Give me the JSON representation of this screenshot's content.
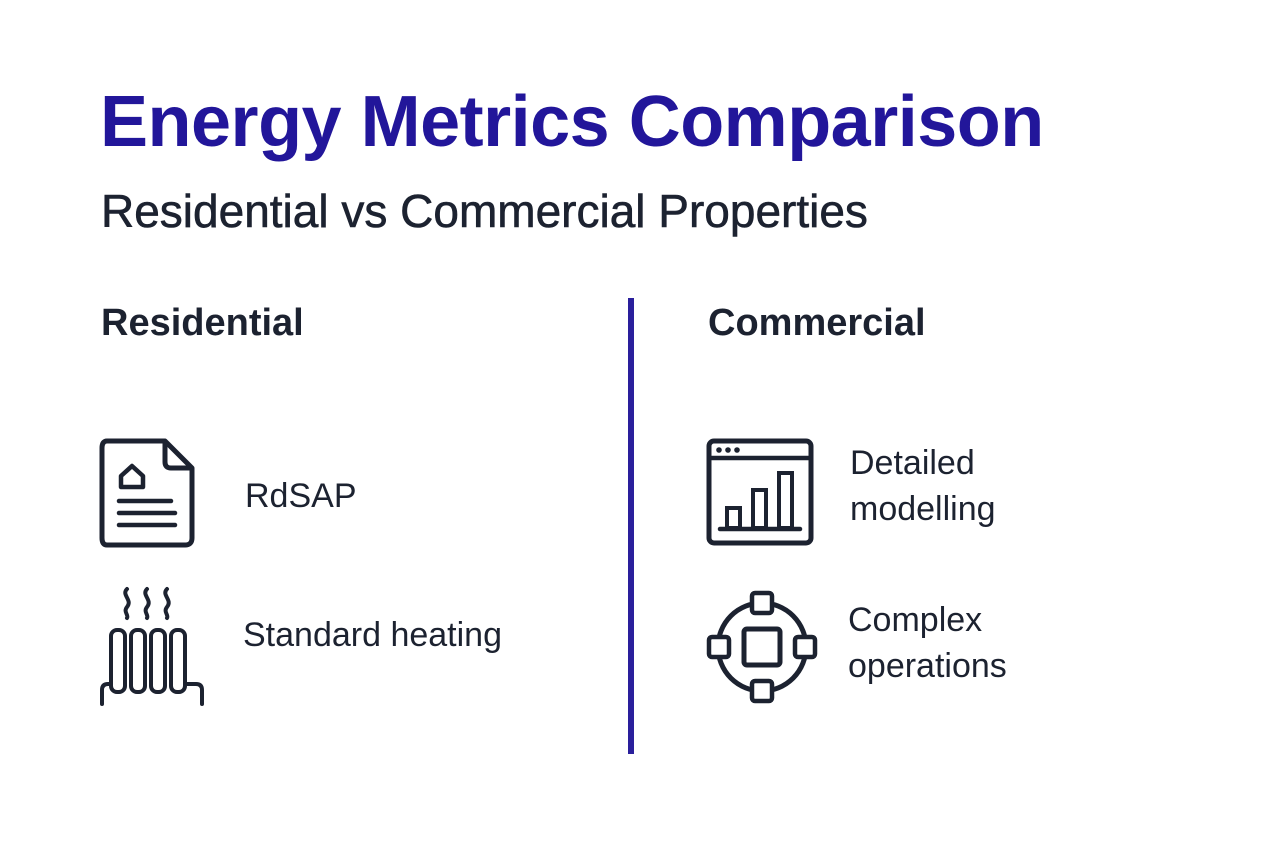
{
  "title": "Energy Metrics Comparison",
  "subtitle": "Residential vs Commercial Properties",
  "columns": [
    {
      "heading": "Residential",
      "items": [
        {
          "icon": "house-document-icon",
          "label": "RdSAP"
        },
        {
          "icon": "radiator-icon",
          "label": "Standard heating"
        }
      ]
    },
    {
      "heading": "Commercial",
      "items": [
        {
          "icon": "bar-chart-window-icon",
          "label": "Detailed\nmodelling"
        },
        {
          "icon": "network-nodes-icon",
          "label": "Complex\noperations"
        }
      ]
    }
  ],
  "colors": {
    "title": "#22169a",
    "divider": "#2a1f9c",
    "text": "#1c2230",
    "background": "#ffffff"
  }
}
